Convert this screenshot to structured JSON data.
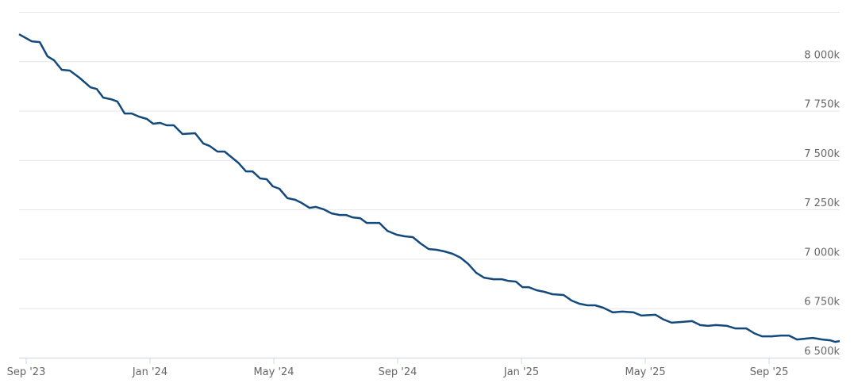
{
  "chart_data": {
    "type": "line",
    "x": [
      -0.23,
      0.18,
      0.44,
      0.69,
      0.9,
      1.15,
      1.41,
      1.72,
      2.08,
      2.28,
      2.49,
      2.74,
      2.95,
      3.18,
      3.41,
      3.64,
      3.9,
      4.1,
      4.33,
      4.54,
      4.77,
      5.05,
      5.46,
      5.72,
      5.92,
      6.18,
      6.41,
      6.85,
      7.1,
      7.31,
      7.56,
      7.77,
      7.97,
      8.18,
      8.44,
      8.69,
      8.9,
      9.15,
      9.36,
      9.62,
      9.87,
      10.13,
      10.33,
      10.54,
      10.79,
      11.0,
      11.41,
      11.67,
      11.97,
      12.23,
      12.49,
      12.74,
      13.0,
      13.26,
      13.51,
      13.77,
      14.03,
      14.28,
      14.54,
      14.79,
      15.1,
      15.36,
      15.56,
      15.82,
      16.03,
      16.23,
      16.49,
      16.74,
      17.0,
      17.36,
      17.62,
      17.87,
      18.13,
      18.38,
      18.64,
      18.95,
      19.26,
      19.62,
      19.87,
      20.33,
      20.59,
      20.85,
      21.21,
      21.51,
      21.77,
      22.03,
      22.28,
      22.64,
      22.9,
      23.26,
      23.51,
      23.77,
      24.08,
      24.38,
      24.64,
      24.9,
      25.41,
      25.72,
      25.97,
      26.13,
      26.28
    ],
    "series": [
      {
        "color": "#13497b",
        "values": [
          8137,
          8101,
          8097,
          8025,
          8005,
          7957,
          7953,
          7917,
          7868,
          7860,
          7816,
          7808,
          7796,
          7736,
          7736,
          7720,
          7708,
          7684,
          7688,
          7676,
          7676,
          7632,
          7636,
          7584,
          7572,
          7543,
          7543,
          7487,
          7443,
          7443,
          7407,
          7403,
          7367,
          7355,
          7307,
          7299,
          7283,
          7258,
          7263,
          7250,
          7230,
          7222,
          7222,
          7210,
          7206,
          7182,
          7182,
          7142,
          7122,
          7114,
          7110,
          7078,
          7050,
          7046,
          7038,
          7026,
          7006,
          6974,
          6929,
          6905,
          6897,
          6897,
          6889,
          6885,
          6857,
          6857,
          6841,
          6833,
          6821,
          6817,
          6789,
          6773,
          6765,
          6765,
          6753,
          6729,
          6733,
          6729,
          6713,
          6717,
          6693,
          6677,
          6681,
          6685,
          6665,
          6661,
          6665,
          6661,
          6648,
          6648,
          6624,
          6608,
          6608,
          6612,
          6612,
          6592,
          6600,
          6592,
          6588,
          6580,
          6584
        ]
      }
    ],
    "xlim": [
      -0.23,
      26.28
    ],
    "xticks": [
      {
        "value": 0,
        "label": "Sep '23"
      },
      {
        "value": 4,
        "label": "Jan '24"
      },
      {
        "value": 8,
        "label": "May '24"
      },
      {
        "value": 12,
        "label": "Sep '24"
      },
      {
        "value": 16,
        "label": "Jan '25"
      },
      {
        "value": 20,
        "label": "May '25"
      },
      {
        "value": 24,
        "label": "Sep '25"
      }
    ],
    "ylim": [
      6500,
      8250
    ],
    "yticks": [
      {
        "value": 6500,
        "label": "6 500k"
      },
      {
        "value": 6750,
        "label": "6 750k"
      },
      {
        "value": 7000,
        "label": "7 000k"
      },
      {
        "value": 7250,
        "label": "7 250k"
      },
      {
        "value": 7500,
        "label": "7 500k"
      },
      {
        "value": 7750,
        "label": "7 750k"
      },
      {
        "value": 8000,
        "label": "8 000k"
      }
    ],
    "grid": true
  }
}
